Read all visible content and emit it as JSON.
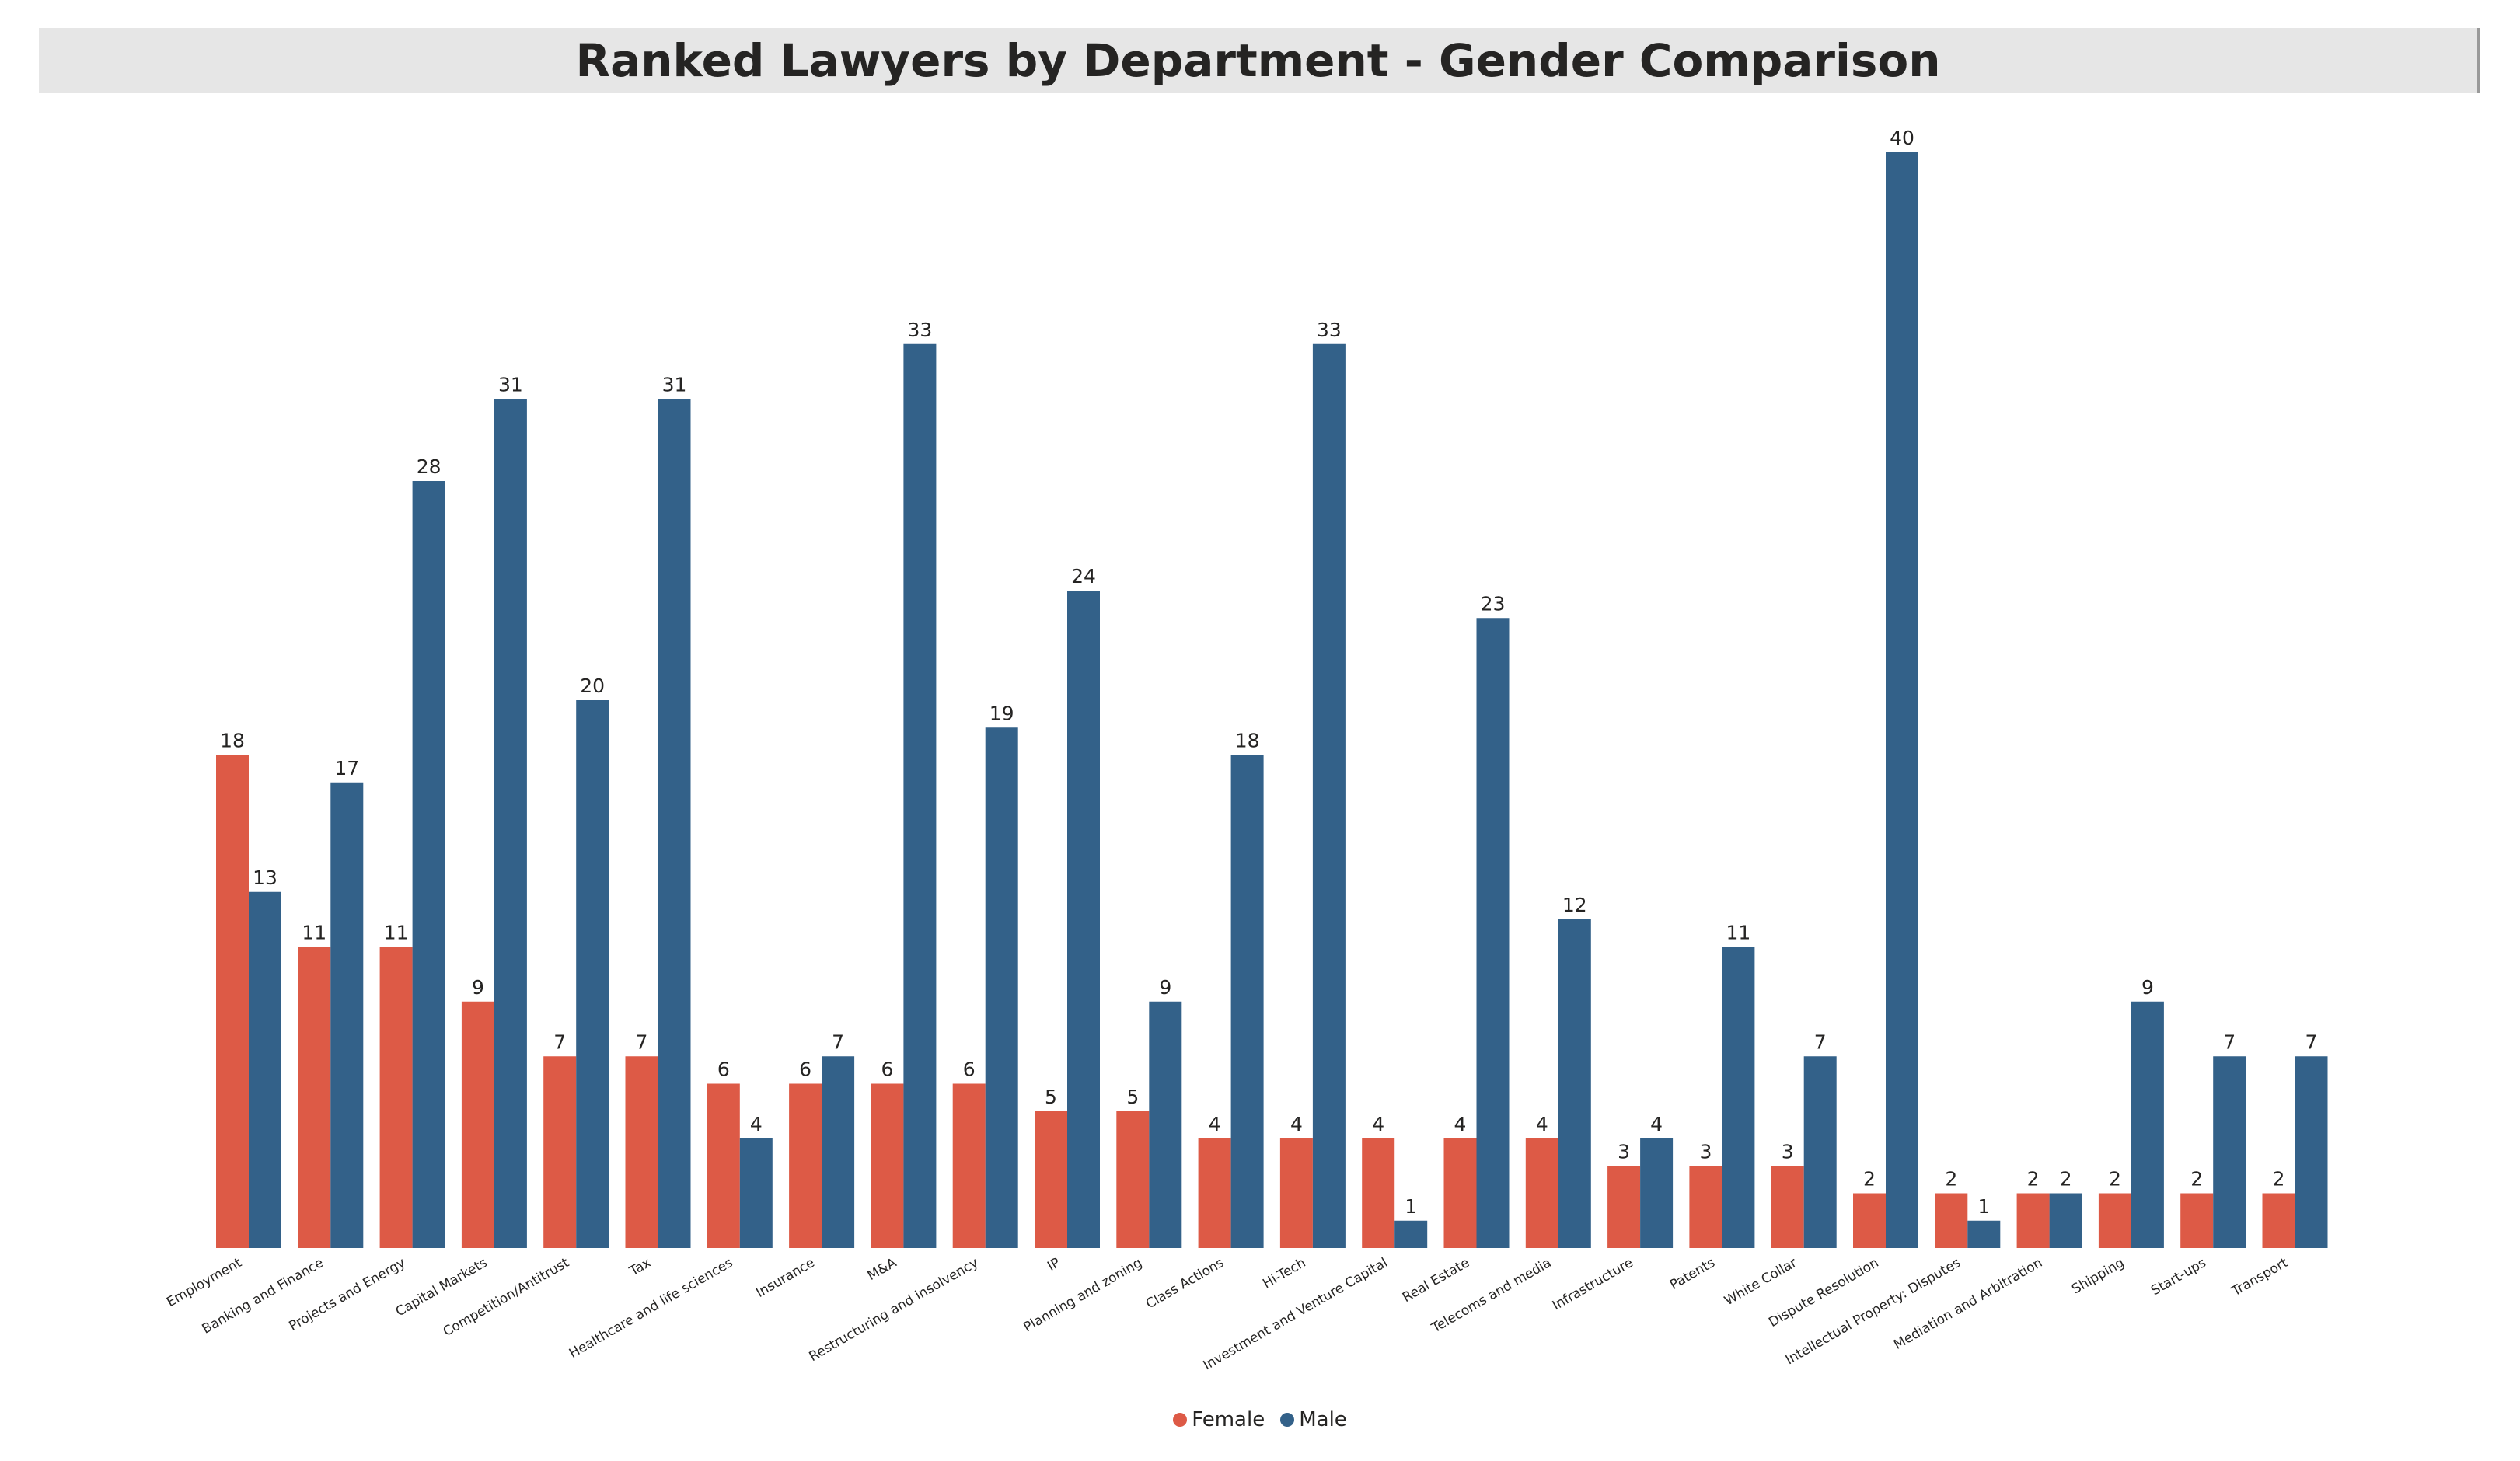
{
  "chart_data": {
    "type": "bar",
    "title": "Ranked Lawyers by Department - Gender Comparison",
    "xlabel": "",
    "ylabel": "",
    "categories": [
      "Employment",
      "Banking and Finance",
      "Projects and Energy",
      "Capital Markets",
      "Competition/Antitrust",
      "Tax",
      "Healthcare and life sciences",
      "Insurance",
      "M&A",
      "Restructuring and insolvency",
      "IP",
      "Planning and zoning",
      "Class Actions",
      "Hi-Tech",
      "Investment and Venture Capital",
      "Real Estate",
      "Telecoms and media",
      "Infrastructure",
      "Patents",
      "White Collar",
      "Dispute Resolution",
      "Intellectual Property: Disputes",
      "Mediation and Arbitration",
      "Shipping",
      "Start-ups",
      "Transport"
    ],
    "series": [
      {
        "name": "Female",
        "color": "#dd5a46",
        "values": [
          18,
          11,
          11,
          9,
          7,
          7,
          6,
          6,
          6,
          6,
          5,
          5,
          4,
          4,
          4,
          4,
          4,
          3,
          3,
          3,
          2,
          2,
          2,
          2,
          2,
          2
        ]
      },
      {
        "name": "Male",
        "color": "#336189",
        "values": [
          13,
          17,
          28,
          31,
          20,
          31,
          4,
          7,
          33,
          19,
          24,
          9,
          18,
          33,
          1,
          23,
          12,
          4,
          11,
          7,
          40,
          1,
          2,
          9,
          7,
          7
        ]
      }
    ],
    "ylim": [
      0,
      40
    ],
    "grid": false,
    "legend_position": "bottom-center",
    "data_labels": true
  }
}
